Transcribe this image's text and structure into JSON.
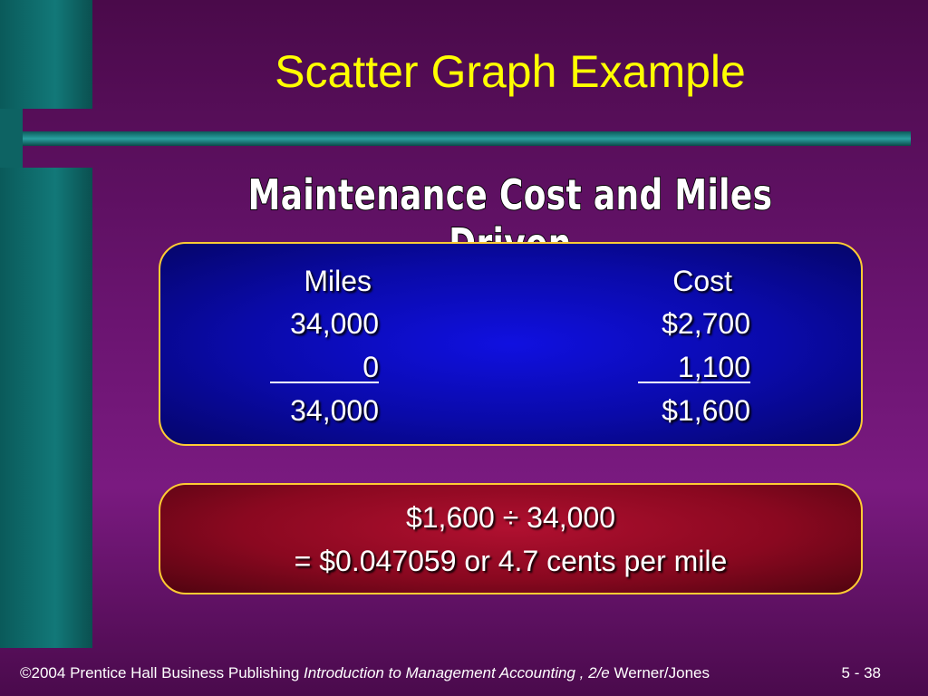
{
  "title": "Scatter Graph Example",
  "subtitle": "Maintenance Cost and Miles Driven",
  "table": {
    "header": [
      "Miles",
      "Cost"
    ],
    "rows": [
      [
        "34,000",
        "$2,700"
      ],
      [
        "0",
        "1,100"
      ],
      [
        "34,000",
        "$1,600"
      ]
    ]
  },
  "result": {
    "lines": [
      "$1,600 ÷ 34,000",
      "= $0.047059 or 4.7 cents per mile"
    ]
  },
  "footer": {
    "publisher": "©2004 Prentice Hall Business Publishing",
    "book": "Introduction to Management Accounting , 2/e",
    "authors": "Werner/Jones",
    "page": "5 - 38"
  }
}
